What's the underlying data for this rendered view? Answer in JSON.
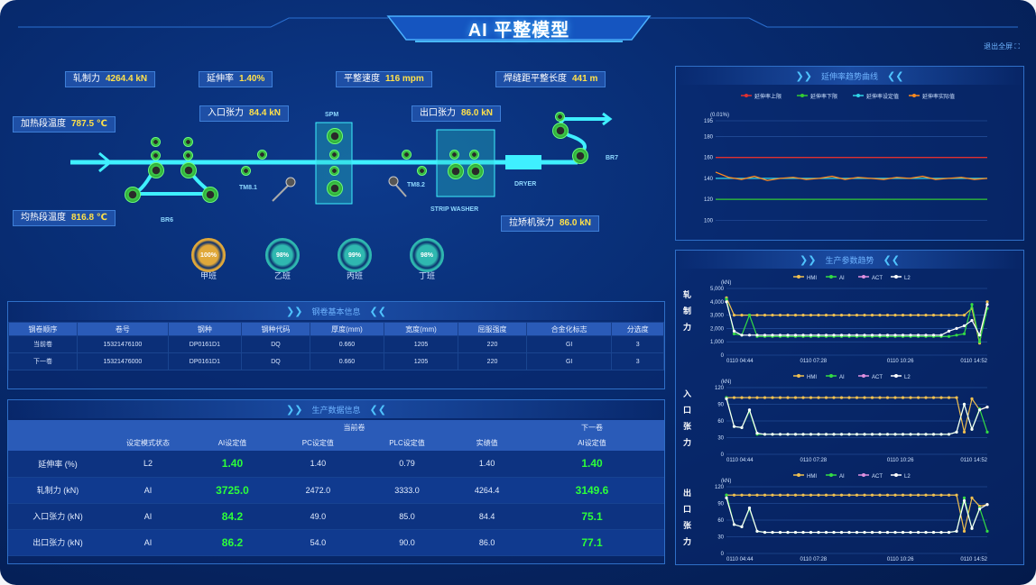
{
  "header": {
    "title": "AI 平整模型",
    "exit": "退出全屏 ⛶"
  },
  "process": {
    "tags": [
      {
        "label": "轧制力",
        "value": "4264.4 kN"
      },
      {
        "label": "延伸率",
        "value": "1.40%"
      },
      {
        "label": "平整速度",
        "value": "116 mpm"
      },
      {
        "label": "焊缝距平整长度",
        "value": "441 m"
      },
      {
        "label": "入口张力",
        "value": "84.4 kN"
      },
      {
        "label": "出口张力",
        "value": "86.0 kN"
      },
      {
        "label": "加热段温度",
        "value": "787.5 ℃"
      },
      {
        "label": "均热段温度",
        "value": "816.8 ℃"
      },
      {
        "label": "拉矫机张力",
        "value": "86.0 kN"
      }
    ],
    "labels": {
      "spm": "SPM",
      "tm1": "TM8.1",
      "tm2": "TM8.2",
      "br6": "BR6",
      "br7": "BR7",
      "dryer": "DRYER",
      "washer": "STRIP WASHER"
    },
    "shifts": [
      {
        "pct": "100%",
        "name": "甲班",
        "color": "#e0a83a"
      },
      {
        "pct": "98%",
        "name": "乙班",
        "color": "#2fb8b0"
      },
      {
        "pct": "99%",
        "name": "丙班",
        "color": "#2fb8b0"
      },
      {
        "pct": "98%",
        "name": "丁班",
        "color": "#2fb8b0"
      }
    ]
  },
  "coil_info": {
    "title": "钢卷基本信息",
    "headers": [
      "钢卷顺序",
      "卷号",
      "钢种",
      "钢种代码",
      "厚度(mm)",
      "宽度(mm)",
      "屈服强度",
      "合金化标志",
      "分选度"
    ],
    "rows": [
      [
        "当前卷",
        "15321476100",
        "DP0161D1",
        "DQ",
        "0.660",
        "1205",
        "220",
        "GI",
        "3"
      ],
      [
        "下一卷",
        "15321476000",
        "DP0161D1",
        "DQ",
        "0.660",
        "1205",
        "220",
        "GI",
        "3"
      ]
    ]
  },
  "prod_info": {
    "title": "生产数据信息",
    "group_current": "当前卷",
    "group_next": "下一卷",
    "headers": [
      "",
      "设定模式状态",
      "AI设定值",
      "PC设定值",
      "PLC设定值",
      "实绩值",
      "AI设定值"
    ],
    "rows": [
      [
        "延伸率 (%)",
        "L2",
        "1.40",
        "1.40",
        "0.79",
        "1.40",
        "1.40"
      ],
      [
        "轧制力 (kN)",
        "AI",
        "3725.0",
        "2472.0",
        "3333.0",
        "4264.4",
        "3149.6"
      ],
      [
        "入口张力 (kN)",
        "AI",
        "84.2",
        "49.0",
        "85.0",
        "84.4",
        "75.1"
      ],
      [
        "出口张力 (kN)",
        "AI",
        "86.2",
        "54.0",
        "90.0",
        "86.0",
        "77.1"
      ]
    ]
  },
  "chart_data": [
    {
      "type": "line",
      "title": "延伸率趋势曲线",
      "ylabel": "(0.01%)",
      "ylim": [
        90,
        195
      ],
      "yticks": [
        195,
        180,
        160,
        140,
        120,
        100
      ],
      "series": [
        {
          "name": "延伸率上限",
          "color": "#e03030",
          "values": [
            160,
            160
          ]
        },
        {
          "name": "延伸率下限",
          "color": "#33cc33",
          "values": [
            120,
            120
          ]
        },
        {
          "name": "延伸率设定值",
          "color": "#2fd6e8",
          "values": [
            140,
            140
          ]
        },
        {
          "name": "延伸率实际值",
          "color": "#ff8a1e",
          "values": [
            146,
            141,
            139,
            142,
            138,
            140,
            141,
            139,
            140,
            142,
            139,
            141,
            140,
            139,
            141,
            140,
            142,
            139,
            140,
            141,
            139,
            140
          ]
        }
      ]
    },
    {
      "type": "line",
      "title": "生产参数趋势",
      "panel_label": "轧制力",
      "ylabel": "(kN)",
      "ylim": [
        0,
        5000
      ],
      "yticks": [
        5000,
        4000,
        3000,
        2000,
        1000,
        0
      ],
      "xticks": [
        "0110 04:44",
        "0110 07:28",
        "0110 10:26",
        "0110 14:52"
      ],
      "series": [
        {
          "name": "HMI",
          "color": "#f0c050",
          "values": [
            4300,
            3000,
            3000,
            3000,
            3000,
            3000,
            3000,
            3000,
            3000,
            3000,
            3000,
            3000,
            3000,
            3000,
            3000,
            3000,
            3000,
            3000,
            3000,
            3000,
            3000,
            3000,
            3000,
            3000,
            3000,
            3000,
            3000,
            3000,
            3000,
            3000,
            3000,
            3000,
            3500,
            900,
            4000
          ]
        },
        {
          "name": "AI",
          "color": "#33dd44",
          "values": [
            4200,
            1600,
            1500,
            3000,
            1400,
            1400,
            1400,
            1400,
            1400,
            1400,
            1400,
            1400,
            1400,
            1400,
            1400,
            1400,
            1400,
            1400,
            1400,
            1400,
            1400,
            1400,
            1400,
            1400,
            1400,
            1400,
            1400,
            1400,
            1400,
            1400,
            1500,
            1600,
            3800,
            1000,
            3500
          ]
        },
        {
          "name": "ACT",
          "color": "#e090e0",
          "values": []
        },
        {
          "name": "L2",
          "color": "#ffffff",
          "values": [
            4000,
            1800,
            1500,
            1500,
            1500,
            1500,
            1500,
            1500,
            1500,
            1500,
            1500,
            1500,
            1500,
            1500,
            1500,
            1500,
            1500,
            1500,
            1500,
            1500,
            1500,
            1500,
            1500,
            1500,
            1500,
            1500,
            1500,
            1500,
            1500,
            1800,
            2000,
            2200,
            2600,
            1500,
            3800
          ]
        }
      ]
    },
    {
      "type": "line",
      "panel_label": "入口张力",
      "ylabel": "(kN)",
      "ylim": [
        0,
        120
      ],
      "yticks": [
        120,
        90,
        60,
        30,
        0
      ],
      "xticks": [
        "0110 04:44",
        "0110 07:28",
        "0110 10:26",
        "0110 14:52"
      ],
      "series": [
        {
          "name": "HMI",
          "color": "#f0c050",
          "values": [
            102,
            102,
            102,
            102,
            102,
            102,
            102,
            102,
            102,
            102,
            102,
            102,
            102,
            102,
            102,
            102,
            102,
            102,
            102,
            102,
            102,
            102,
            102,
            102,
            102,
            102,
            102,
            102,
            102,
            102,
            102,
            40,
            100,
            80,
            85
          ]
        },
        {
          "name": "AI",
          "color": "#33dd44",
          "values": [
            102,
            50,
            48,
            78,
            36,
            36,
            36,
            36,
            36,
            36,
            36,
            36,
            36,
            36,
            36,
            36,
            36,
            36,
            36,
            36,
            36,
            36,
            36,
            36,
            36,
            36,
            36,
            36,
            36,
            36,
            40,
            90,
            45,
            82,
            40
          ]
        },
        {
          "name": "ACT",
          "color": "#e090e0",
          "values": []
        },
        {
          "name": "L2",
          "color": "#ffffff",
          "values": [
            100,
            50,
            48,
            80,
            38,
            36,
            36,
            36,
            36,
            36,
            36,
            36,
            36,
            36,
            36,
            36,
            36,
            36,
            36,
            36,
            36,
            36,
            36,
            36,
            36,
            36,
            36,
            36,
            36,
            36,
            40,
            90,
            45,
            80,
            85
          ]
        }
      ]
    },
    {
      "type": "line",
      "panel_label": "出口张力",
      "ylabel": "(kN)",
      "ylim": [
        0,
        120
      ],
      "yticks": [
        120,
        90,
        60,
        30,
        0
      ],
      "xticks": [
        "0110 04:44",
        "0110 07:28",
        "0110 10:26",
        "0110 14:52"
      ],
      "series": [
        {
          "name": "HMI",
          "color": "#f0c050",
          "values": [
            105,
            105,
            105,
            105,
            105,
            105,
            105,
            105,
            105,
            105,
            105,
            105,
            105,
            105,
            105,
            105,
            105,
            105,
            105,
            105,
            105,
            105,
            105,
            105,
            105,
            105,
            105,
            105,
            105,
            105,
            105,
            40,
            100,
            85,
            88
          ]
        },
        {
          "name": "AI",
          "color": "#33dd44",
          "values": [
            105,
            52,
            48,
            80,
            40,
            38,
            38,
            38,
            38,
            38,
            38,
            38,
            38,
            38,
            38,
            38,
            38,
            38,
            38,
            38,
            38,
            38,
            38,
            38,
            38,
            38,
            38,
            38,
            38,
            38,
            40,
            100,
            45,
            82,
            40
          ]
        },
        {
          "name": "ACT",
          "color": "#e090e0",
          "values": []
        },
        {
          "name": "L2",
          "color": "#ffffff",
          "values": [
            100,
            52,
            48,
            82,
            40,
            38,
            38,
            38,
            38,
            38,
            38,
            38,
            38,
            38,
            38,
            38,
            38,
            38,
            38,
            38,
            38,
            38,
            38,
            38,
            38,
            38,
            38,
            38,
            38,
            38,
            40,
            95,
            45,
            80,
            88
          ]
        }
      ]
    }
  ]
}
